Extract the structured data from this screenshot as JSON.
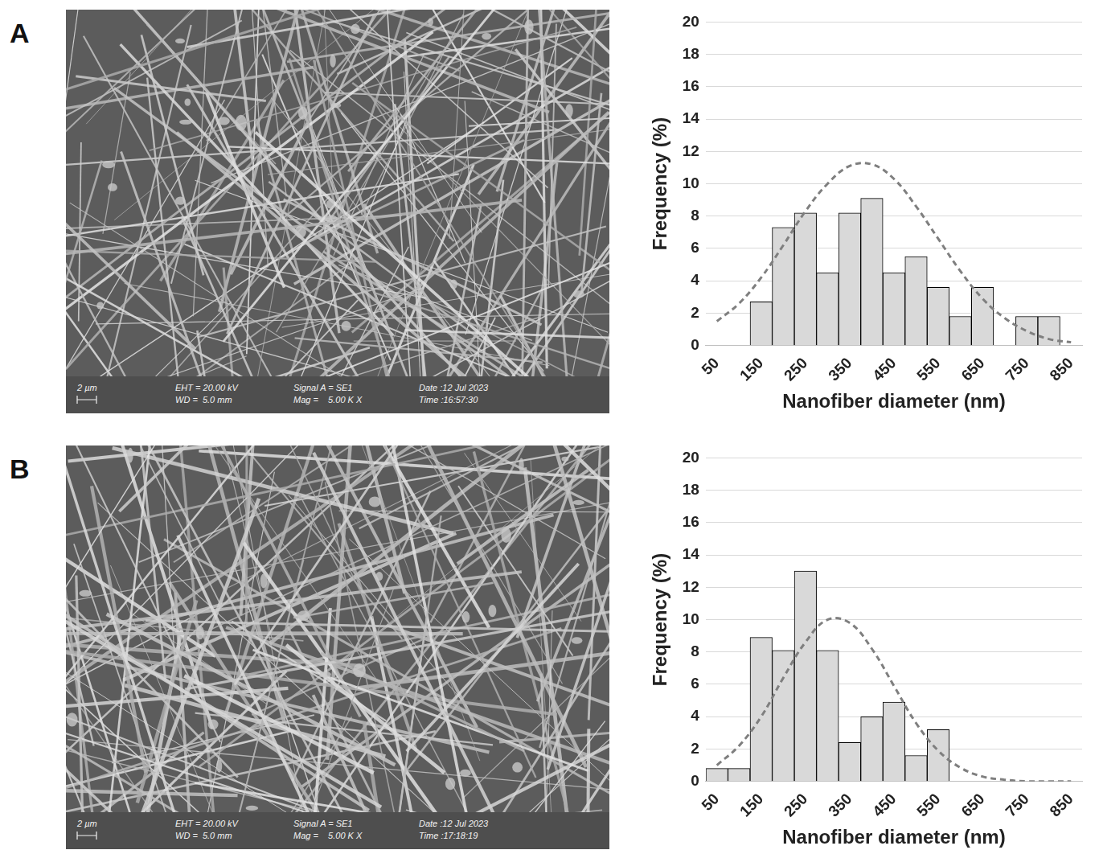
{
  "images": [
    {
      "panel": "A",
      "scale_bar": "2 µm",
      "info": [
        "EHT = 20.00 kV",
        "WD =  5.0 mm",
        "Signal A = SE1",
        "Mag =    5.00 K X",
        "Date :12 Jul 2023",
        "Time :16:57:30"
      ]
    },
    {
      "panel": "B",
      "scale_bar": "2 µm",
      "info": [
        "EHT = 20.00 kV",
        "WD =  5.0 mm",
        "Signal A = SE1",
        "Mag =    5.00 K X",
        "Date :12 Jul 2023",
        "Time :17:18:19"
      ]
    }
  ],
  "chart_data": [
    {
      "type": "bar",
      "x_label": "Nanofiber diameter (nm)",
      "y_label": "Frequency (%)",
      "categories": [
        "50",
        null,
        "150",
        null,
        "250",
        null,
        "350",
        null,
        "450",
        null,
        "550",
        null,
        "650",
        null,
        "750",
        null,
        "850"
      ],
      "series": [
        {
          "type": "bar",
          "color": "#d9d9d9",
          "values": [
            0,
            0,
            2.7,
            7.3,
            8.2,
            4.5,
            8.2,
            9.1,
            4.5,
            5.5,
            3.6,
            1.8,
            3.6,
            0,
            1.8,
            1.8,
            0
          ]
        },
        {
          "type": "line",
          "line_style": "dashed",
          "color": "#7f7f7f",
          "values": [
            1.5,
            2.6,
            4.2,
            6.2,
            8.3,
            10.0,
            11.1,
            11.2,
            10.3,
            8.6,
            6.6,
            4.6,
            2.9,
            1.7,
            0.9,
            0.4,
            0.2
          ]
        }
      ],
      "ylim": [
        0,
        20
      ],
      "yticks": [
        0,
        2,
        4,
        6,
        8,
        10,
        12,
        14,
        16,
        18,
        20
      ],
      "grid": true
    },
    {
      "type": "bar",
      "x_label": "Nanofiber diameter (nm)",
      "y_label": "Frequency (%)",
      "categories": [
        "50",
        null,
        "150",
        null,
        "250",
        null,
        "350",
        null,
        "450",
        null,
        "550",
        null,
        "650",
        null,
        "750",
        null,
        "850"
      ],
      "series": [
        {
          "type": "bar",
          "color": "#d9d9d9",
          "values": [
            0.8,
            0.8,
            8.9,
            8.1,
            13.0,
            8.1,
            2.4,
            4.0,
            4.9,
            1.6,
            3.2,
            0,
            0,
            0,
            0,
            0,
            0
          ]
        },
        {
          "type": "line",
          "line_style": "dashed",
          "color": "#7f7f7f",
          "values": [
            1.0,
            2.2,
            4.0,
            6.4,
            8.6,
            10.0,
            9.8,
            8.2,
            5.9,
            3.6,
            1.9,
            0.85,
            0.3,
            0.1,
            0,
            0,
            0
          ]
        }
      ],
      "ylim": [
        0,
        20
      ],
      "yticks": [
        0,
        2,
        4,
        6,
        8,
        10,
        12,
        14,
        16,
        18,
        20
      ],
      "grid": true
    }
  ]
}
